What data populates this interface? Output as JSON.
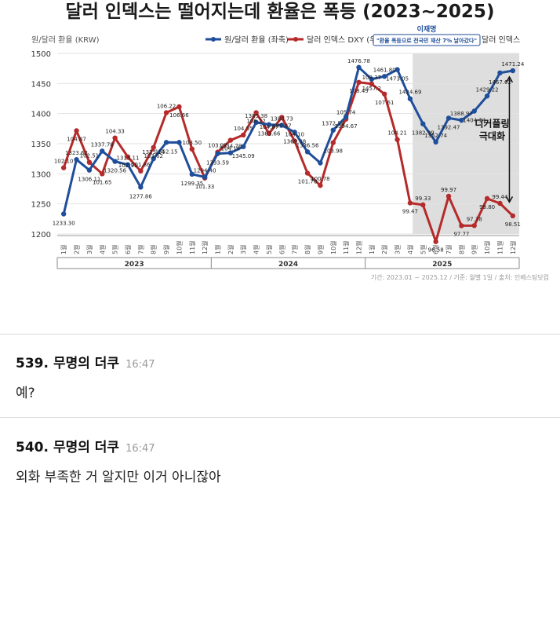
{
  "chart_data": {
    "type": "line",
    "title": "달러 인덱스는 떨어지는데 환율은 폭등 (2023~2025)",
    "ylabel": "원/달러 환율 (KRW)",
    "ylim": [
      1200,
      1500
    ],
    "y_ticks": [
      "1500",
      "1450",
      "1400",
      "1350",
      "1300",
      "1250",
      "1200"
    ],
    "secondary_ylabel": "달러 인덱스",
    "categories": [
      "1월",
      "2월",
      "3월",
      "4월",
      "5월",
      "6월",
      "7월",
      "8월",
      "9월",
      "10월",
      "11월",
      "12월",
      "1월",
      "2월",
      "3월",
      "4월",
      "5월",
      "6월",
      "7월",
      "8월",
      "9월",
      "10월",
      "11월",
      "12월",
      "1월",
      "2월",
      "3월",
      "4월",
      "5월",
      "6월",
      "7월",
      "8월",
      "9월",
      "10월",
      "11월",
      "12월"
    ],
    "years": [
      "2023",
      "2024",
      "2025"
    ],
    "series": [
      {
        "name": "원/달러 환율 (좌축)",
        "color": "#1f4e9a",
        "values": [
          1233.3,
          1323.62,
          1306.11,
          1337.78,
          1320.56,
          1315.11,
          1277.86,
          1325.14,
          1352.15,
          1352.15,
          1299.35,
          1294.4,
          1333.59,
          1334.78,
          1345.09,
          1385.38,
          1381.66,
          1380.73,
          1369.08,
          1336.56,
          1318.0,
          1372.58,
          1394.67,
          1476.78,
          1457.2,
          1461.8,
          1473.05,
          1424.69,
          1382.99,
          1352.74,
          1392.47,
          1388.97,
          1404.14,
          1429.22,
          1467.62,
          1471.24
        ],
        "labels": [
          "1233.30",
          "1323.62",
          "1306.11",
          "1337.78",
          "1320.56",
          "1315.11",
          "1277.86",
          "1325.14",
          "1352.15",
          "",
          "1299.35",
          "1294.40",
          "1333.59",
          "1334.78",
          "1345.09",
          "1385.38",
          "1381.66",
          "1380.73",
          "1369.08",
          "1336.56",
          "",
          "1372.58",
          "1394.67",
          "1476.78",
          "1457.2",
          "1461.80",
          "1473.05",
          "1424.69",
          "1382.99",
          "1352.74",
          "1392.47",
          "1388.97",
          "1404.14",
          "1429.22",
          "1467.62",
          "1471.24"
        ]
      },
      {
        "name": "달러 인덱스 DXY (우축)",
        "color": "#b52a2a",
        "values": [
          102.1,
          104.87,
          102.51,
          101.65,
          104.33,
          102.91,
          101.86,
          103.62,
          106.22,
          106.66,
          103.5,
          101.33,
          103.27,
          104.16,
          104.55,
          106.22,
          104.67,
          105.87,
          104.1,
          101.7,
          100.78,
          103.98,
          105.74,
          108.49,
          108.37,
          107.61,
          104.21,
          99.47,
          99.33,
          96.58,
          99.97,
          97.77,
          97.78,
          99.8,
          99.44,
          98.51
        ],
        "labels": [
          "102.10",
          "104.87",
          "102.51",
          "101.65",
          "104.33",
          "102.91",
          "101.86",
          "103.62",
          "106.22",
          "106.66",
          "103.50",
          "101.33",
          "103.27",
          "104.16",
          "104.55",
          "106.22",
          "104.67",
          "105.87",
          "104.10",
          "101.70",
          "100.78",
          "103.98",
          "105.74",
          "108.49",
          "108.37",
          "107.61",
          "104.21",
          "99.47",
          "99.33",
          "96.58",
          "99.97",
          "97.77",
          "97.78",
          "99.80",
          "99.44",
          "98.51"
        ]
      }
    ],
    "highlight_range": [
      "2025-05",
      "2025-12"
    ],
    "callout_name": "이재명",
    "callout_quote": "\"환율 폭등으로 전국민 재산 7% 날아갔다\"",
    "annotation": [
      "디커플링",
      "극대화"
    ],
    "source": "기간: 2023.01 ~ 2025.12 / 기준: 월별 1일 / 출처: 인베스팅닷컴",
    "grid": true,
    "legend_position": "top-right"
  },
  "comments": [
    {
      "number": "539.",
      "author": "무명의 더쿠",
      "time": "16:47",
      "text": "예?"
    },
    {
      "number": "540.",
      "author": "무명의 더쿠",
      "time": "16:47",
      "text": "외화 부족한 거 알지만 이거 아니잖아"
    }
  ]
}
